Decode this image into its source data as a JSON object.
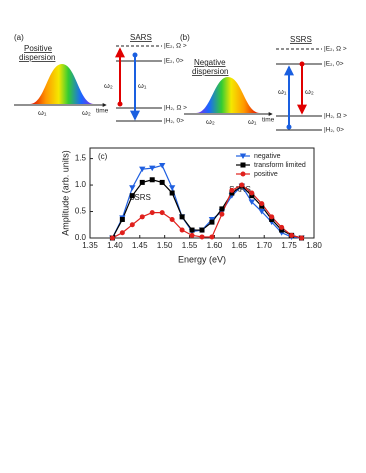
{
  "panel_a": {
    "label": "(a)",
    "title_line1": "Positive",
    "title_line2": "dispersion",
    "omega_left": "ω₁",
    "omega_right": "ω₂",
    "time": "time",
    "process": "SARS",
    "levels": [
      "|E₂, Ω >",
      "|E₂, 0>",
      "|H₂, Ω >",
      "|H₂, 0>"
    ],
    "arrow_up": "ω₂",
    "arrow_down": "ω₁"
  },
  "panel_b": {
    "label": "(b)",
    "title_line1": "Negative",
    "title_line2": "dispersion",
    "omega_left": "ω₂",
    "omega_right": "ω₁",
    "time": "time",
    "process": "SSRS",
    "levels": [
      "|E₂, Ω >",
      "|E₂, 0>",
      "|H₂, Ω >",
      "|H₂, 0>"
    ],
    "arrow_up": "ω₁",
    "arrow_down": "ω₂"
  },
  "chart_data": {
    "type": "line",
    "panel_label": "(c)",
    "x_label": "Energy (eV)",
    "y_label": "Amplitude (arb. units)",
    "annotations": [
      "SSRS",
      "SARS"
    ],
    "x": [
      1.395,
      1.415,
      1.435,
      1.455,
      1.475,
      1.495,
      1.515,
      1.535,
      1.555,
      1.575,
      1.595,
      1.615,
      1.635,
      1.655,
      1.675,
      1.695,
      1.715,
      1.735,
      1.755,
      1.775
    ],
    "series": [
      {
        "name": "negative",
        "color": "#1f5fe0",
        "marker": "triangle-down",
        "values": [
          0,
          0.38,
          0.95,
          1.3,
          1.32,
          1.37,
          0.95,
          0.4,
          0.12,
          0.15,
          0.35,
          0.5,
          0.8,
          0.98,
          0.68,
          0.5,
          0.3,
          0.1,
          0.02,
          0
        ]
      },
      {
        "name": "transform limited",
        "color": "#000000",
        "marker": "square",
        "values": [
          0,
          0.35,
          0.8,
          1.05,
          1.1,
          1.05,
          0.85,
          0.4,
          0.15,
          0.15,
          0.3,
          0.55,
          0.85,
          0.98,
          0.8,
          0.6,
          0.35,
          0.15,
          0.05,
          0
        ]
      },
      {
        "name": "positive",
        "color": "#e0201c",
        "marker": "circle",
        "values": [
          0,
          0.1,
          0.25,
          0.4,
          0.48,
          0.48,
          0.35,
          0.15,
          0.05,
          0.02,
          0.02,
          0.45,
          0.9,
          1.0,
          0.85,
          0.65,
          0.4,
          0.2,
          0.05,
          0
        ]
      }
    ],
    "xlim": [
      1.35,
      1.8
    ],
    "ylim": [
      0,
      1.7
    ],
    "xticks": [
      1.35,
      {
        "value": 1.4,
        "label": "1.40"
      },
      1.45,
      {
        "value": 1.5,
        "label": "1.50"
      },
      1.55,
      {
        "value": 1.6,
        "label": "1.60"
      },
      1.65,
      {
        "value": 1.7,
        "label": "1.70"
      },
      1.75,
      {
        "value": 1.8,
        "label": "1.80"
      }
    ],
    "yticks": [
      {
        "value": 0,
        "label": "0.0"
      },
      0.5,
      {
        "value": 1,
        "label": "1.0"
      },
      1.5
    ],
    "grid": false,
    "legend": "upper right"
  }
}
